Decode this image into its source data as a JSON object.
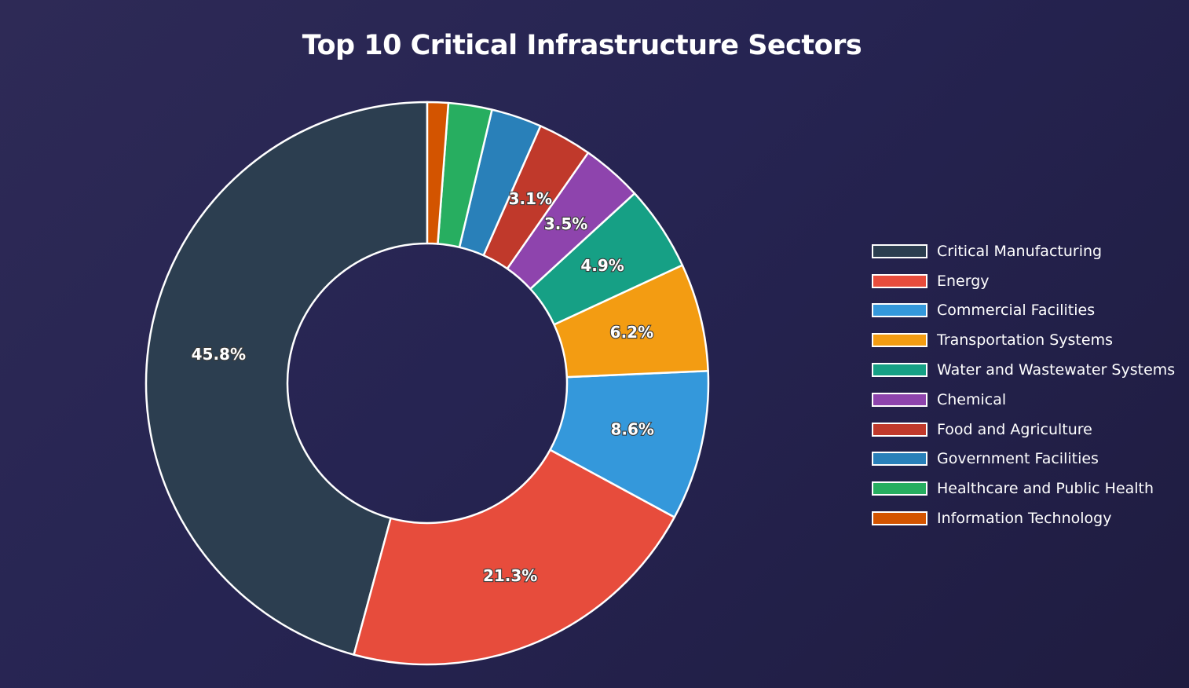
{
  "chart_data": {
    "type": "pie",
    "title": "Top 10 Critical Infrastructure Sectors",
    "hole": true,
    "legend_position": "right",
    "categories": [
      "Critical Manufacturing",
      "Energy",
      "Commercial Facilities",
      "Transportation Systems",
      "Water and Wastewater Systems",
      "Chemical",
      "Food and Agriculture",
      "Government Facilities",
      "Healthcare and Public Health",
      "Information Technology"
    ],
    "values": [
      45.8,
      21.3,
      8.6,
      6.2,
      4.9,
      3.5,
      3.1,
      2.9,
      2.5,
      1.2
    ],
    "labels_shown": [
      "45.8%",
      "21.3%",
      "8.6%",
      "6.2%",
      "4.9%",
      "3.5%",
      "3.1%",
      "",
      "",
      ""
    ],
    "colors": [
      "#2c3e50",
      "#e74c3c",
      "#3498db",
      "#f39c12",
      "#16a085",
      "#8e44ad",
      "#c0392b",
      "#2980b9",
      "#27ae60",
      "#d35400"
    ]
  }
}
